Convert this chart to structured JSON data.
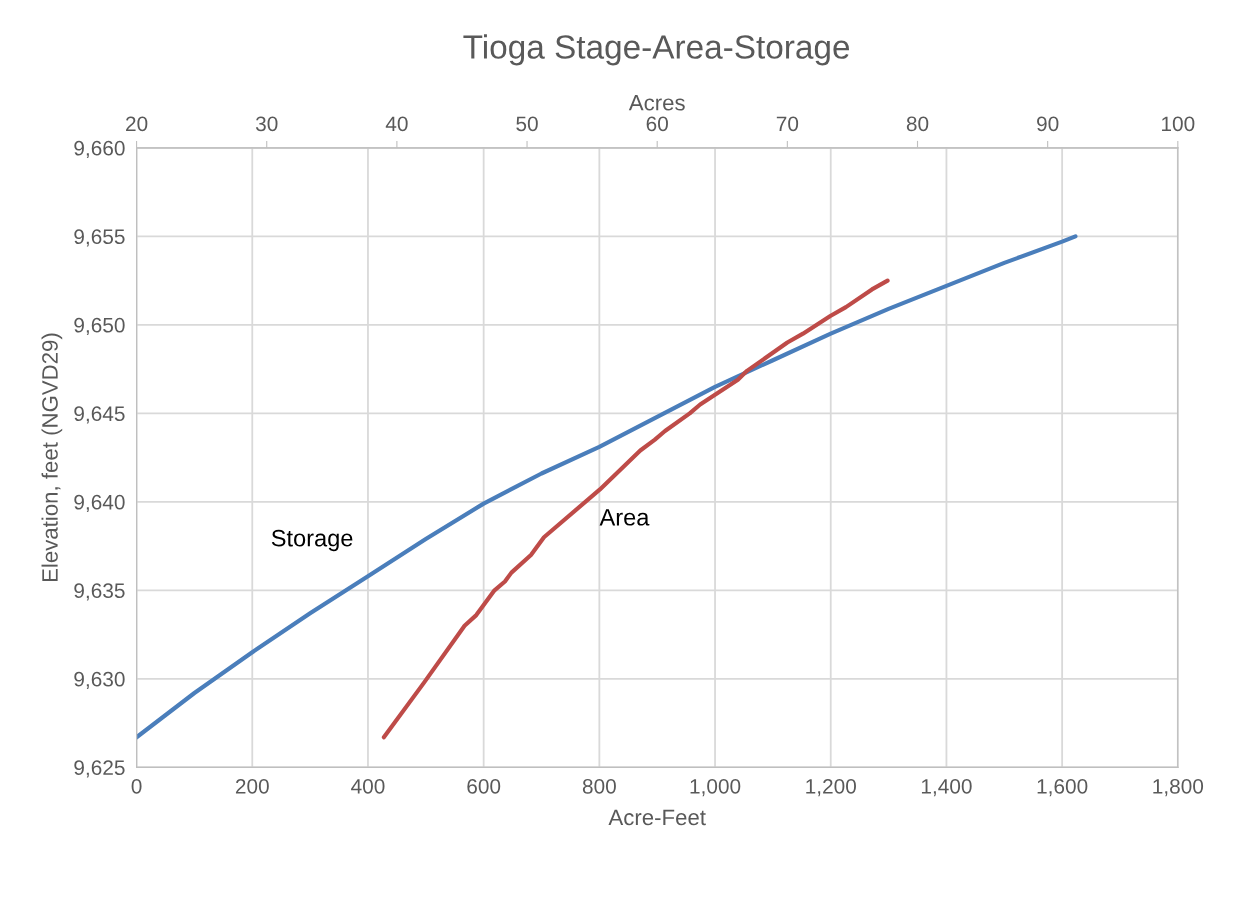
{
  "chart_data": {
    "type": "line",
    "title": "Tioga Stage-Area-Storage",
    "xlabel": "Acre-Feet",
    "ylabel": "Elevation, feet (NGVD29)",
    "x2label": "Acres",
    "xlim": [
      0,
      1800
    ],
    "xticks": [
      0,
      200,
      400,
      600,
      800,
      {
        "value": 1000,
        "label": "1,000"
      },
      {
        "value": 1200,
        "label": "1,200"
      },
      {
        "value": 1400,
        "label": "1,400"
      },
      {
        "value": 1600,
        "label": "1,600"
      },
      {
        "value": 1800,
        "label": "1,800"
      }
    ],
    "x2lim": [
      20,
      100
    ],
    "x2ticks": [
      20,
      30,
      40,
      50,
      60,
      70,
      80,
      90,
      100
    ],
    "ylim": [
      9625,
      9660
    ],
    "yticks": [
      {
        "value": 9625,
        "label": "9,625"
      },
      {
        "value": 9630,
        "label": "9,630"
      },
      {
        "value": 9635,
        "label": "9,635"
      },
      {
        "value": 9640,
        "label": "9,640"
      },
      {
        "value": 9645,
        "label": "9,645"
      },
      {
        "value": 9650,
        "label": "9,650"
      },
      {
        "value": 9655,
        "label": "9,655"
      },
      {
        "value": 9660,
        "label": "9,660"
      }
    ],
    "grid": true,
    "legend": false,
    "marker": "none",
    "line_style": "solid",
    "series": [
      {
        "name": "Storage",
        "color": "#4a7ebb",
        "x": [
          0,
          100,
          200,
          300,
          400,
          500,
          600,
          700,
          800,
          1000,
          1100,
          1200,
          1300,
          1400,
          1500,
          1600,
          1623
        ],
        "values": [
          9626.7,
          9629.2,
          9631.5,
          9633.7,
          9635.8,
          9637.9,
          9639.9,
          9641.6,
          9643.1,
          9646.5,
          9648.0,
          9649.5,
          9650.9,
          9652.2,
          9653.5,
          9654.7,
          9655.0
        ]
      },
      {
        "name": "Area",
        "color": "#be4b48",
        "axis": "x2",
        "x": [
          39.0,
          42.1,
          45.2,
          46.1,
          47.5,
          48.3,
          48.8,
          50.3,
          51.3,
          55.6,
          58.7,
          59.8,
          60.6,
          62.5,
          63.3,
          66.2,
          66.9,
          70.0,
          71.2,
          73.3,
          74.5,
          76.5,
          77.7
        ],
        "values": [
          9626.7,
          9629.8,
          9633.0,
          9633.6,
          9635.0,
          9635.5,
          9636.0,
          9637.0,
          9638.0,
          9640.7,
          9642.9,
          9643.5,
          9644.0,
          9645.0,
          9645.5,
          9646.9,
          9647.4,
          9649.0,
          9649.5,
          9650.5,
          9651.0,
          9652.0,
          9652.5
        ]
      }
    ]
  }
}
